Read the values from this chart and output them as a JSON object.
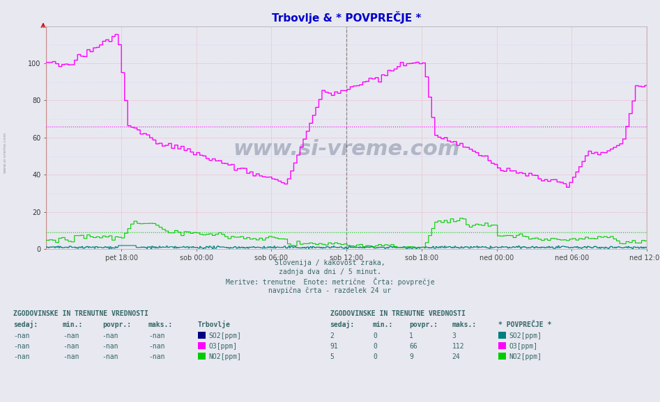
{
  "title": "Trbovlje & * POVPREČJE *",
  "title_color": "#0000cc",
  "bg_color": "#e8e8f0",
  "xlabel_ticks": [
    "pet 18:00",
    "sob 00:00",
    "sob 06:00",
    "sob 12:00",
    "sob 18:00",
    "ned 00:00",
    "ned 06:00",
    "ned 12:00"
  ],
  "yticks": [
    0,
    20,
    40,
    60,
    80,
    100
  ],
  "ylim": [
    0,
    120
  ],
  "avg_dotted_o3": 66,
  "avg_dotted_no2": 9,
  "watermark": "www.si-vreme.com",
  "caption_lines": [
    "Slovenija / kakovost zraka,",
    "zadnja dva dni / 5 minut.",
    "Meritve: trenutne  Enote: metrične  Črta: povprečje",
    "navpična črta - razdelek 24 ur"
  ],
  "table1_header": "ZGODOVINSKE IN TRENUTNE VREDNOSTI",
  "table1_rows": [
    [
      "-nan",
      "-nan",
      "-nan",
      "-nan",
      "SO2[ppm]"
    ],
    [
      "-nan",
      "-nan",
      "-nan",
      "-nan",
      "O3[ppm]"
    ],
    [
      "-nan",
      "-nan",
      "-nan",
      "-nan",
      "NO2[ppm]"
    ]
  ],
  "table1_station": "Trbovlje",
  "table1_colors": [
    "#000080",
    "#ff00ff",
    "#00cc00"
  ],
  "table2_header": "ZGODOVINSKE IN TRENUTNE VREDNOSTI",
  "table2_rows": [
    [
      "2",
      "0",
      "1",
      "3",
      "SO2[ppm]"
    ],
    [
      "91",
      "0",
      "66",
      "112",
      "O3[ppm]"
    ],
    [
      "5",
      "0",
      "9",
      "24",
      "NO2[ppm]"
    ]
  ],
  "table2_station": "* POVPREČJE *",
  "table2_colors": [
    "#008080",
    "#ff00ff",
    "#00cc00"
  ],
  "n_points": 576
}
